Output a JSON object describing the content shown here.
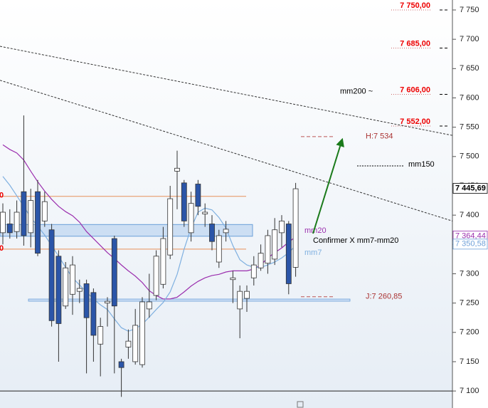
{
  "chart_data": {
    "type": "candlestick",
    "ylim": [
      7071,
      7767
    ],
    "yticks": [
      {
        "value": 7100,
        "label": "7 100"
      },
      {
        "value": 7150,
        "label": "7 150"
      },
      {
        "value": 7200,
        "label": "7 200"
      },
      {
        "value": 7250,
        "label": "7 250"
      },
      {
        "value": 7300,
        "label": "7 300"
      },
      {
        "value": 7350,
        "label": "7 350"
      },
      {
        "value": 7400,
        "label": "7 400"
      },
      {
        "value": 7450,
        "label": "7 450"
      },
      {
        "value": 7500,
        "label": "7 500"
      },
      {
        "value": 7550,
        "label": "7 550"
      },
      {
        "value": 7600,
        "label": "7 600"
      },
      {
        "value": 7650,
        "label": "7 650"
      },
      {
        "value": 7700,
        "label": "7 700"
      },
      {
        "value": 7750,
        "label": "7 750"
      }
    ],
    "candles": {
      "up_color": "#ffffff",
      "down_color": "#2b55a8",
      "open": [
        7370,
        7385,
        7372,
        7440,
        7370,
        7440,
        7390,
        7375,
        7330,
        7245,
        7265,
        7270,
        7283,
        7268,
        7180,
        7250,
        7360,
        7150,
        7175,
        7150,
        7145,
        7240,
        7263,
        7282,
        7332,
        7475,
        7455,
        7370,
        7453,
        7402,
        7385,
        7320,
        7370,
        7290,
        7240,
        7258,
        7293,
        7310,
        7318,
        7325,
        7370,
        7385,
        7311
      ],
      "high": [
        7420,
        7410,
        7425,
        7570,
        7445,
        7460,
        7440,
        7385,
        7340,
        7320,
        7330,
        7290,
        7290,
        7275,
        7225,
        7260,
        7365,
        7155,
        7205,
        7240,
        7260,
        7300,
        7340,
        7380,
        7450,
        7510,
        7460,
        7440,
        7460,
        7420,
        7400,
        7375,
        7390,
        7305,
        7280,
        7280,
        7330,
        7350,
        7375,
        7395,
        7400,
        7390,
        7455
      ],
      "low": [
        7350,
        7360,
        7360,
        7348,
        7345,
        7330,
        7380,
        7210,
        7150,
        7240,
        7230,
        7250,
        7130,
        7150,
        7125,
        7210,
        7130,
        7090,
        7155,
        7145,
        7140,
        7225,
        7255,
        7275,
        7325,
        7410,
        7380,
        7355,
        7400,
        7380,
        7340,
        7310,
        7355,
        7250,
        7190,
        7235,
        7280,
        7305,
        7300,
        7315,
        7345,
        7265,
        7295
      ],
      "close": [
        7405,
        7370,
        7405,
        7365,
        7425,
        7335,
        7423,
        7220,
        7215,
        7310,
        7315,
        7275,
        7225,
        7195,
        7210,
        7253,
        7245,
        7140,
        7185,
        7212,
        7252,
        7252,
        7330,
        7360,
        7428,
        7480,
        7390,
        7420,
        7415,
        7405,
        7355,
        7365,
        7376,
        7293,
        7270,
        7270,
        7315,
        7335,
        7365,
        7375,
        7390,
        7283,
        7445
      ]
    },
    "series": [
      {
        "name": "mm20",
        "color": "#9b2fae",
        "values": [
          7520,
          7512,
          7506,
          7494,
          7475,
          7457,
          7441,
          7427,
          7415,
          7406,
          7399,
          7388,
          7372,
          7360,
          7348,
          7336,
          7326,
          7315,
          7305,
          7296,
          7285,
          7271,
          7263,
          7257,
          7257,
          7260,
          7269,
          7279,
          7287,
          7293,
          7297,
          7299,
          7303,
          7305,
          7305,
          7305,
          7308,
          7315,
          7327,
          7336,
          7344,
          7354,
          7363
        ]
      },
      {
        "name": "mm7",
        "color": "#7fb0e0",
        "values": [
          7466,
          7451,
          7433,
          7415,
          7396,
          7381,
          7366,
          7348,
          7330,
          7311,
          7293,
          7281,
          7269,
          7257,
          7247,
          7239,
          7223,
          7208,
          7202,
          7206,
          7214,
          7226,
          7239,
          7251,
          7269,
          7299,
          7342,
          7378,
          7405,
          7412,
          7409,
          7396,
          7378,
          7348,
          7324,
          7315,
          7311,
          7311,
          7315,
          7320,
          7327,
          7336,
          7348
        ]
      }
    ],
    "levels": [
      {
        "value": 7750,
        "label": "7 750,00"
      },
      {
        "value": 7685,
        "label": "7 685,00"
      },
      {
        "value": 7606,
        "label": "7 606,00"
      },
      {
        "value": 7552,
        "label": "7 552,00"
      }
    ],
    "markers": [
      {
        "value": 7534,
        "label": "H:7 534"
      },
      {
        "value": 7260.85,
        "label": "J:7 260,85"
      }
    ],
    "hlines": [
      {
        "value": 7432,
        "label": "0"
      },
      {
        "value": 7342,
        "label": "0"
      }
    ],
    "support": 7255,
    "zone": [
      7364,
      7384
    ],
    "trendlines": [
      [
        7688,
        7536
      ],
      [
        7630,
        7390
      ]
    ],
    "price_tags": [
      {
        "value": 7445.69,
        "label": "7 445,69",
        "color": "#000000"
      },
      {
        "value": 7364.44,
        "label": "7 364,44",
        "color": "#9b2fae"
      },
      {
        "value": 7350.58,
        "label": "7 350,58",
        "color": "#6fa0d8"
      }
    ],
    "annotations": {
      "mm200": "mm200 ~",
      "mm150": "mm150",
      "cross": "Confirmer X mm7-mm20"
    }
  }
}
